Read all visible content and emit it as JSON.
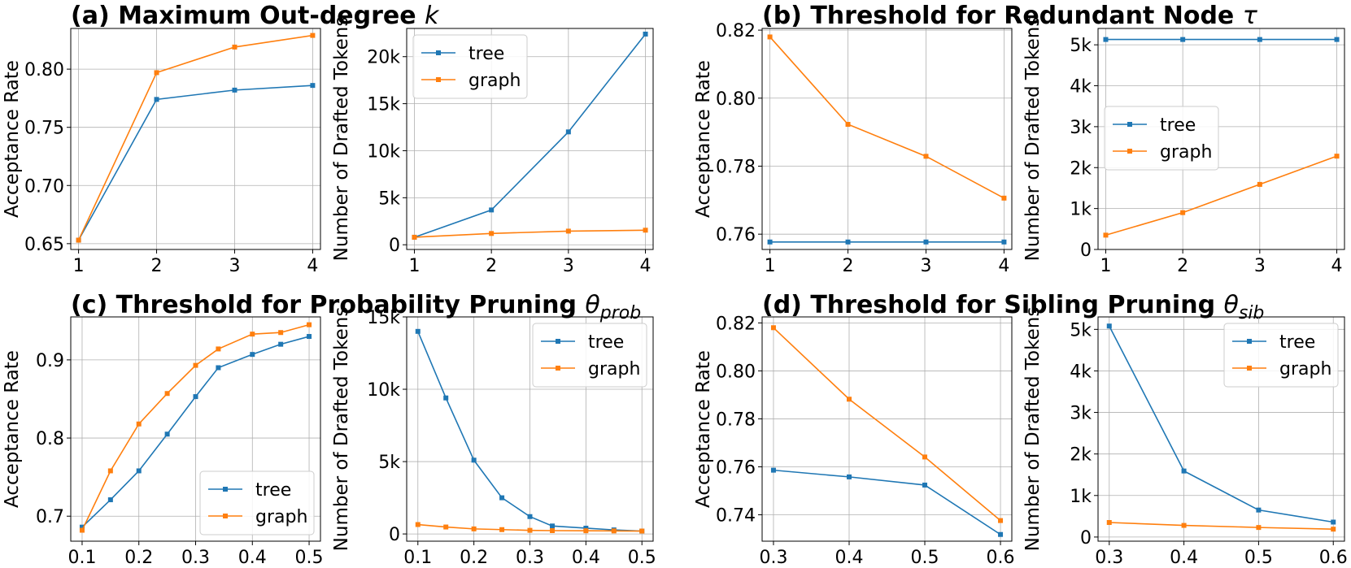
{
  "titles": [
    {
      "text": "(a) Maximum Out-degree ",
      "sym": "k",
      "sub": ""
    },
    {
      "text": "(b) Threshold for Redundant Node ",
      "sym": "τ",
      "sub": ""
    },
    {
      "text": "(c) Threshold for Probability Pruning ",
      "sym": "θ",
      "sub": "prob"
    },
    {
      "text": "(d) Threshold for Sibling Pruning ",
      "sym": "θ",
      "sub": "sib"
    }
  ],
  "colors": {
    "tree": "#1f77b4",
    "graph": "#ff7f0e"
  },
  "chart_data": [
    {
      "type": "line",
      "panel": "a-left",
      "ylabel": "Acceptance Rate",
      "x": [
        1,
        2,
        3,
        4
      ],
      "xlim": [
        0.9,
        4.1
      ],
      "ylim": [
        0.645,
        0.835
      ],
      "xticks": [
        "1",
        "2",
        "3",
        "4"
      ],
      "yticks": [
        "0.65",
        "0.70",
        "0.75",
        "0.80"
      ],
      "grid": true,
      "legend": "none",
      "series": [
        {
          "name": "tree",
          "values": [
            0.653,
            0.774,
            0.782,
            0.786
          ]
        },
        {
          "name": "graph",
          "values": [
            0.653,
            0.797,
            0.819,
            0.829
          ]
        }
      ]
    },
    {
      "type": "line",
      "panel": "a-right",
      "ylabel": "Number of Drafted Tokens",
      "x": [
        1,
        2,
        3,
        4
      ],
      "xlim": [
        0.9,
        4.1
      ],
      "ylim": [
        -500,
        23000
      ],
      "xticks": [
        "1",
        "2",
        "3",
        "4"
      ],
      "yticks": [
        "0",
        "5k",
        "10k",
        "15k",
        "20k"
      ],
      "grid": true,
      "legend": "top-left",
      "series": [
        {
          "name": "tree",
          "values": [
            800,
            3700,
            12000,
            22400
          ]
        },
        {
          "name": "graph",
          "values": [
            800,
            1200,
            1450,
            1550
          ]
        }
      ]
    },
    {
      "type": "line",
      "panel": "b-left",
      "ylabel": "Acceptance Rate",
      "x": [
        1,
        2,
        3,
        4
      ],
      "xlim": [
        0.9,
        4.1
      ],
      "ylim": [
        0.7555,
        0.8205
      ],
      "xticks": [
        "1",
        "2",
        "3",
        "4"
      ],
      "yticks": [
        "0.76",
        "0.78",
        "0.80",
        "0.82"
      ],
      "grid": true,
      "legend": "none",
      "series": [
        {
          "name": "tree",
          "values": [
            0.7577,
            0.7577,
            0.7577,
            0.7577
          ]
        },
        {
          "name": "graph",
          "values": [
            0.818,
            0.7923,
            0.7829,
            0.7706
          ]
        }
      ]
    },
    {
      "type": "line",
      "panel": "b-right",
      "ylabel": "Number of Drafted Tokens",
      "x": [
        1,
        2,
        3,
        4
      ],
      "xlim": [
        0.9,
        4.1
      ],
      "ylim": [
        0,
        5400
      ],
      "xticks": [
        "1",
        "2",
        "3",
        "4"
      ],
      "yticks": [
        "0",
        "1k",
        "2k",
        "3k",
        "4k",
        "5k"
      ],
      "grid": true,
      "legend": "center-left",
      "series": [
        {
          "name": "tree",
          "values": [
            5130,
            5130,
            5130,
            5130
          ]
        },
        {
          "name": "graph",
          "values": [
            350,
            900,
            1590,
            2280
          ]
        }
      ]
    },
    {
      "type": "line",
      "panel": "c-left",
      "ylabel": "Acceptance Rate",
      "x": [
        0.1,
        0.15,
        0.2,
        0.25,
        0.3,
        0.34,
        0.4,
        0.45,
        0.5
      ],
      "xlim": [
        0.08,
        0.52
      ],
      "ylim": [
        0.668,
        0.955
      ],
      "xticks": [
        "0.1",
        "0.2",
        "0.3",
        "0.4",
        "0.5"
      ],
      "xtick_values": [
        0.1,
        0.2,
        0.3,
        0.4,
        0.5
      ],
      "yticks": [
        "0.7",
        "0.8",
        "0.9"
      ],
      "ytick_values": [
        0.7,
        0.8,
        0.9
      ],
      "grid": true,
      "legend": "bottom-right",
      "series": [
        {
          "name": "tree",
          "values": [
            0.686,
            0.721,
            0.758,
            0.805,
            0.853,
            0.89,
            0.907,
            0.92,
            0.93
          ]
        },
        {
          "name": "graph",
          "values": [
            0.682,
            0.758,
            0.818,
            0.857,
            0.893,
            0.914,
            0.933,
            0.935,
            0.945
          ]
        }
      ]
    },
    {
      "type": "line",
      "panel": "c-right",
      "ylabel": "Number of Drafted Tokens",
      "x": [
        0.1,
        0.15,
        0.2,
        0.25,
        0.3,
        0.34,
        0.4,
        0.45,
        0.5
      ],
      "xlim": [
        0.08,
        0.52
      ],
      "ylim": [
        -500,
        15000
      ],
      "xticks": [
        "0.1",
        "0.2",
        "0.3",
        "0.4",
        "0.5"
      ],
      "xtick_values": [
        0.1,
        0.2,
        0.3,
        0.4,
        0.5
      ],
      "yticks": [
        "0",
        "5k",
        "10k",
        "15k"
      ],
      "ytick_values": [
        0,
        5000,
        10000,
        15000
      ],
      "grid": true,
      "legend": "top-right",
      "series": [
        {
          "name": "tree",
          "values": [
            14000,
            9400,
            5100,
            2500,
            1200,
            550,
            400,
            280,
            200
          ]
        },
        {
          "name": "graph",
          "values": [
            650,
            480,
            350,
            300,
            250,
            230,
            220,
            210,
            200
          ]
        }
      ]
    },
    {
      "type": "line",
      "panel": "d-left",
      "ylabel": "Acceptance Rate",
      "x": [
        0.3,
        0.4,
        0.5,
        0.6
      ],
      "xlim": [
        0.285,
        0.615
      ],
      "ylim": [
        0.729,
        0.8225
      ],
      "xticks": [
        "0.3",
        "0.4",
        "0.5",
        "0.6"
      ],
      "xtick_values": [
        0.3,
        0.4,
        0.5,
        0.6
      ],
      "yticks": [
        "0.74",
        "0.76",
        "0.78",
        "0.80",
        "0.82"
      ],
      "ytick_values": [
        0.74,
        0.76,
        0.78,
        0.8,
        0.82
      ],
      "grid": true,
      "legend": "none",
      "series": [
        {
          "name": "tree",
          "values": [
            0.7586,
            0.7558,
            0.7524,
            0.7318
          ]
        },
        {
          "name": "graph",
          "values": [
            0.818,
            0.7882,
            0.7641,
            0.7376
          ]
        }
      ]
    },
    {
      "type": "line",
      "panel": "d-right",
      "ylabel": "Number of Drafted Tokens",
      "x": [
        0.3,
        0.4,
        0.5,
        0.6
      ],
      "xlim": [
        0.285,
        0.615
      ],
      "ylim": [
        -100,
        5300
      ],
      "xticks": [
        "0.3",
        "0.4",
        "0.5",
        "0.6"
      ],
      "xtick_values": [
        0.3,
        0.4,
        0.5,
        0.6
      ],
      "yticks": [
        "0",
        "1k",
        "2k",
        "3k",
        "4k",
        "5k"
      ],
      "ytick_values": [
        0,
        1000,
        2000,
        3000,
        4000,
        5000
      ],
      "grid": true,
      "legend": "top-right",
      "series": [
        {
          "name": "tree",
          "values": [
            5080,
            1590,
            650,
            360
          ]
        },
        {
          "name": "graph",
          "values": [
            350,
            280,
            230,
            190
          ]
        }
      ]
    }
  ]
}
